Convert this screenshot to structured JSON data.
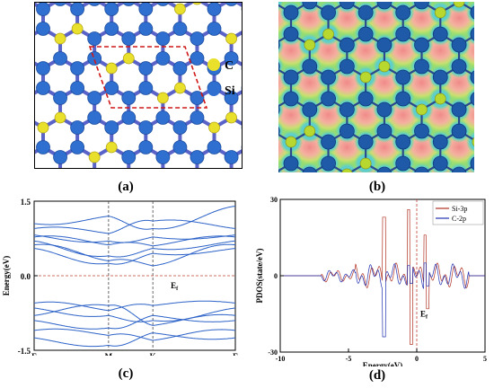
{
  "panel_a": {
    "caption": "(a)",
    "legend": [
      {
        "label": "C",
        "color": "#e8e02a"
      },
      {
        "label": "Si",
        "color": "#2f6fd0"
      }
    ]
  },
  "panel_b": {
    "caption": "(b)"
  },
  "chart_data": [
    {
      "type": "line",
      "caption": "(c)",
      "ylabel": "Energy(eV)",
      "yticks": [
        "1.5",
        "0.0",
        "-1.5"
      ],
      "ylim": [
        -1.5,
        1.5
      ],
      "xticks": [
        "Γ",
        "M",
        "K",
        "Γ"
      ],
      "fermi_label": "E",
      "fermi_sub": "f",
      "series": [
        {
          "values": [
            1.05,
            1.2,
            0.95,
            1.4
          ]
        },
        {
          "values": [
            0.95,
            0.85,
            1.1,
            0.95
          ]
        },
        {
          "values": [
            0.82,
            0.7,
            0.78,
            0.82
          ]
        },
        {
          "values": [
            0.78,
            0.62,
            0.6,
            0.78
          ]
        },
        {
          "values": [
            0.7,
            0.4,
            0.55,
            0.7
          ]
        },
        {
          "values": [
            0.62,
            0.3,
            0.2,
            0.62
          ]
        },
        {
          "values": [
            0.55,
            0.25,
            0.45,
            0.55
          ]
        },
        {
          "values": [
            -0.55,
            -0.7,
            -0.6,
            -0.55
          ]
        },
        {
          "values": [
            -0.65,
            -0.8,
            -0.9,
            -0.65
          ]
        },
        {
          "values": [
            -0.8,
            -0.6,
            -1.0,
            -0.8
          ]
        },
        {
          "values": [
            -0.9,
            -1.05,
            -0.8,
            -0.9
          ]
        },
        {
          "values": [
            -1.1,
            -1.2,
            -1.3,
            -1.1
          ]
        },
        {
          "values": [
            -1.25,
            -1.4,
            -1.15,
            -1.25
          ]
        }
      ]
    },
    {
      "type": "line",
      "caption": "(d)",
      "ylabel": "PDOS(state/eV)",
      "xlabel": "Energy(eV)",
      "xticks": [
        "-10",
        "-5",
        "0",
        "5"
      ],
      "xlim": [
        -10,
        5
      ],
      "yticks": [
        "30",
        "0",
        "-30"
      ],
      "ylim": [
        -30,
        30
      ],
      "fermi_label": "E",
      "fermi_sub": "f",
      "legend_position": "top-right",
      "series": [
        {
          "name": "Si-3p",
          "color": "#b03020"
        },
        {
          "name": "C-2p",
          "color": "#2030b0"
        }
      ]
    }
  ]
}
